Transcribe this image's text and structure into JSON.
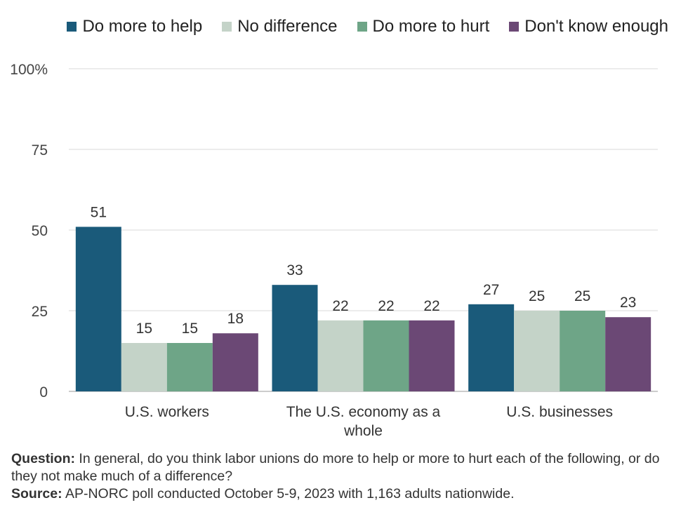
{
  "chart_data": {
    "type": "bar",
    "categories": [
      "U.S. workers",
      "The U.S. economy as a whole",
      "U.S. businesses"
    ],
    "category_lines": [
      [
        "U.S. workers"
      ],
      [
        "The U.S. economy as a",
        "whole"
      ],
      [
        "U.S. businesses"
      ]
    ],
    "series": [
      {
        "name": "Do more to help",
        "color": "#1a5a7a",
        "values": [
          51,
          33,
          27
        ]
      },
      {
        "name": "No difference",
        "color": "#c4d3c8",
        "values": [
          15,
          22,
          25
        ]
      },
      {
        "name": "Do more to hurt",
        "color": "#6ea587",
        "values": [
          15,
          22,
          25
        ]
      },
      {
        "name": "Don't know enough",
        "color": "#6b4875",
        "values": [
          18,
          22,
          23
        ]
      }
    ],
    "yticks": [
      "0",
      "25",
      "50",
      "75",
      "100%"
    ],
    "ylim": [
      0,
      100
    ],
    "grid": true,
    "legend_position": "top"
  },
  "footer": {
    "question_label": "Question:",
    "question_text": " In general, do you think labor unions do more to help or more to hurt each of the following, or do they not make much of a difference?",
    "source_label": "Source:",
    "source_text": " AP-NORC poll conducted October 5-9, 2023 with 1,163 adults nationwide."
  }
}
